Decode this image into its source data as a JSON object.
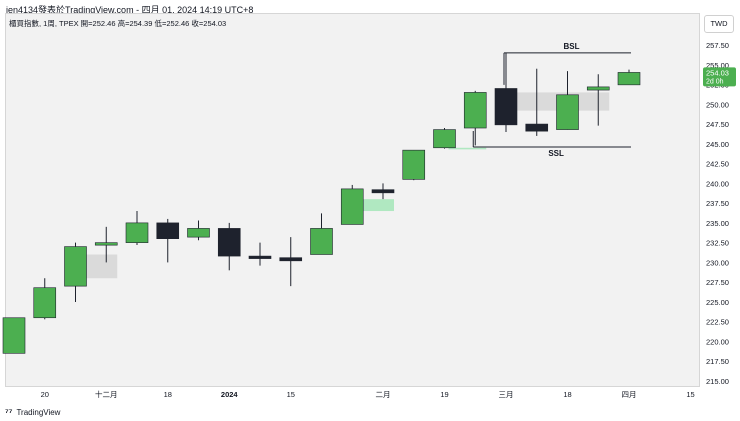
{
  "header": {
    "title": "jen4134發表於TradingView.com - 四月 01, 2024 14:19 UTC+8"
  },
  "legend": {
    "text": "櫃買指數, 1周, TPEX  開=252.46  高=254.39  低=252.46  收=254.03"
  },
  "currency": "TWD",
  "footer": {
    "brand": "TradingView"
  },
  "price_label": {
    "value": "254.03",
    "countdown": "2d 0h"
  },
  "annotations": {
    "bsl": "BSL",
    "ssl": "SSL"
  },
  "colors": {
    "up": "#4caf50",
    "down": "#1e222d",
    "up_light": "#a5e6b8",
    "grey_zone": "#d6d6d6"
  },
  "chart_data": {
    "type": "candlestick",
    "symbol": "櫃買指數",
    "interval": "1周",
    "exchange": "TPEX",
    "y_ticks": [
      "215.00",
      "217.50",
      "220.00",
      "222.50",
      "225.00",
      "227.50",
      "230.00",
      "232.50",
      "235.00",
      "237.50",
      "240.00",
      "242.50",
      "245.00",
      "247.50",
      "250.00",
      "252.50",
      "255.00",
      "257.50"
    ],
    "ylim": [
      215.0,
      257.5
    ],
    "x_tick_labels": [
      {
        "label": "20",
        "index": 1
      },
      {
        "label": "十二月",
        "index": 3
      },
      {
        "label": "18",
        "index": 5
      },
      {
        "label": "2024",
        "index": 7
      },
      {
        "label": "15",
        "index": 9
      },
      {
        "label": "二月",
        "index": 12
      },
      {
        "label": "19",
        "index": 14
      },
      {
        "label": "三月",
        "index": 16
      },
      {
        "label": "18",
        "index": 18
      },
      {
        "label": "四月",
        "index": 20
      },
      {
        "label": "15",
        "index": 22
      }
    ],
    "candles": [
      {
        "o": 218.5,
        "h": 223.0,
        "l": 218.5,
        "c": 223.0
      },
      {
        "o": 223.0,
        "h": 228.0,
        "l": 222.8,
        "c": 226.8
      },
      {
        "o": 227.0,
        "h": 232.5,
        "l": 225.0,
        "c": 232.0
      },
      {
        "o": 232.2,
        "h": 234.5,
        "l": 230.0,
        "c": 232.5
      },
      {
        "o": 232.5,
        "h": 236.5,
        "l": 232.2,
        "c": 235.0
      },
      {
        "o": 235.0,
        "h": 235.5,
        "l": 230.0,
        "c": 233.0
      },
      {
        "o": 233.2,
        "h": 235.3,
        "l": 232.8,
        "c": 234.3
      },
      {
        "o": 234.3,
        "h": 235.0,
        "l": 229.0,
        "c": 230.8
      },
      {
        "o": 230.8,
        "h": 232.5,
        "l": 229.6,
        "c": 230.5
      },
      {
        "o": 230.6,
        "h": 233.2,
        "l": 227.0,
        "c": 230.2
      },
      {
        "o": 231.0,
        "h": 236.2,
        "l": 231.0,
        "c": 234.3
      },
      {
        "o": 234.8,
        "h": 239.8,
        "l": 234.8,
        "c": 239.3
      },
      {
        "o": 239.2,
        "h": 240.0,
        "l": 238.0,
        "c": 238.8
      },
      {
        "o": 240.5,
        "h": 244.2,
        "l": 240.4,
        "c": 244.2
      },
      {
        "o": 244.5,
        "h": 247.0,
        "l": 244.4,
        "c": 246.8
      },
      {
        "o": 247.0,
        "h": 251.7,
        "l": 244.8,
        "c": 251.5
      },
      {
        "o": 252.0,
        "h": 256.5,
        "l": 246.5,
        "c": 247.4
      },
      {
        "o": 247.5,
        "h": 254.5,
        "l": 246.0,
        "c": 246.6
      },
      {
        "o": 246.8,
        "h": 254.2,
        "l": 246.8,
        "c": 251.2
      },
      {
        "o": 251.8,
        "h": 253.8,
        "l": 247.3,
        "c": 252.2
      },
      {
        "o": 252.46,
        "h": 254.39,
        "l": 252.46,
        "c": 254.03
      }
    ],
    "zones": [
      {
        "kind": "grey",
        "from_index": 2,
        "to_index": 3,
        "top": 231.0,
        "bottom": 228.0
      },
      {
        "kind": "green",
        "from_index": 11,
        "to_index": 12,
        "top": 238.0,
        "bottom": 236.5
      },
      {
        "kind": "green",
        "from_index": 14,
        "to_index": 15,
        "top": 244.5,
        "bottom": 244.3
      },
      {
        "kind": "grey",
        "from_index": 16,
        "to_index": 19,
        "top": 251.5,
        "bottom": 249.2
      }
    ],
    "levels": [
      {
        "name": "BSL",
        "price": 256.5,
        "from_index": 16,
        "to_index": 20
      },
      {
        "name": "SSL",
        "price": 244.6,
        "from_index": 15,
        "to_index": 20
      }
    ]
  }
}
